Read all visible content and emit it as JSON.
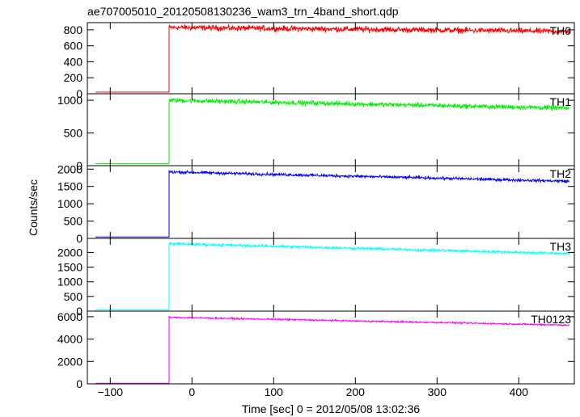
{
  "chart_data": {
    "type": "line",
    "title": "ae707005010_20120508130236_wam3_trn_4band_short.qdp",
    "xlabel": "Time [sec] 0 = 2012/05/08 13:02:36",
    "ylabel": "Counts/sec",
    "xlim": [
      -128,
      468
    ],
    "x_ticks": [
      -100,
      0,
      100,
      200,
      300,
      400
    ],
    "x_tick_labels": [
      "−100",
      "0",
      "100",
      "200",
      "300",
      "400"
    ],
    "step_time": -28,
    "panels": [
      {
        "name": "TH0",
        "color": "#ff0000",
        "ylim": [
          0,
          890
        ],
        "y_ticks": [
          0,
          200,
          400,
          600,
          800
        ],
        "y_tick_labels": [
          "0",
          "200",
          "400",
          "600",
          "800"
        ],
        "baseline": 20,
        "start_level": 830,
        "end_level": 780,
        "noise": 35
      },
      {
        "name": "TH1",
        "color": "#00ee00",
        "ylim": [
          0,
          1100
        ],
        "y_ticks": [
          0,
          500,
          1000
        ],
        "y_tick_labels": [
          "0",
          "500",
          "1000"
        ],
        "baseline": 30,
        "start_level": 1000,
        "end_level": 880,
        "noise": 35
      },
      {
        "name": "TH2",
        "color": "#0000ff",
        "ylim": [
          0,
          2100
        ],
        "y_ticks": [
          0,
          500,
          1000,
          1500,
          2000
        ],
        "y_tick_labels": [
          "0",
          "500",
          "1000",
          "1500",
          "2000"
        ],
        "baseline": 40,
        "start_level": 1920,
        "end_level": 1650,
        "noise": 40
      },
      {
        "name": "TH3",
        "color": "#00ffff",
        "ylim": [
          0,
          2480
        ],
        "y_ticks": [
          0,
          500,
          1000,
          1500,
          2000
        ],
        "y_tick_labels": [
          "0",
          "500",
          "1000",
          "1500",
          "2000"
        ],
        "baseline": 50,
        "start_level": 2300,
        "end_level": 1960,
        "noise": 45
      },
      {
        "name": "TH0123",
        "color": "#ff00ff",
        "ylim": [
          0,
          6500
        ],
        "y_ticks": [
          0,
          2000,
          4000,
          6000
        ],
        "y_tick_labels": [
          "0",
          "2000",
          "4000",
          "6000"
        ],
        "baseline": 50,
        "start_level": 5950,
        "end_level": 5250,
        "noise": 70
      }
    ]
  }
}
